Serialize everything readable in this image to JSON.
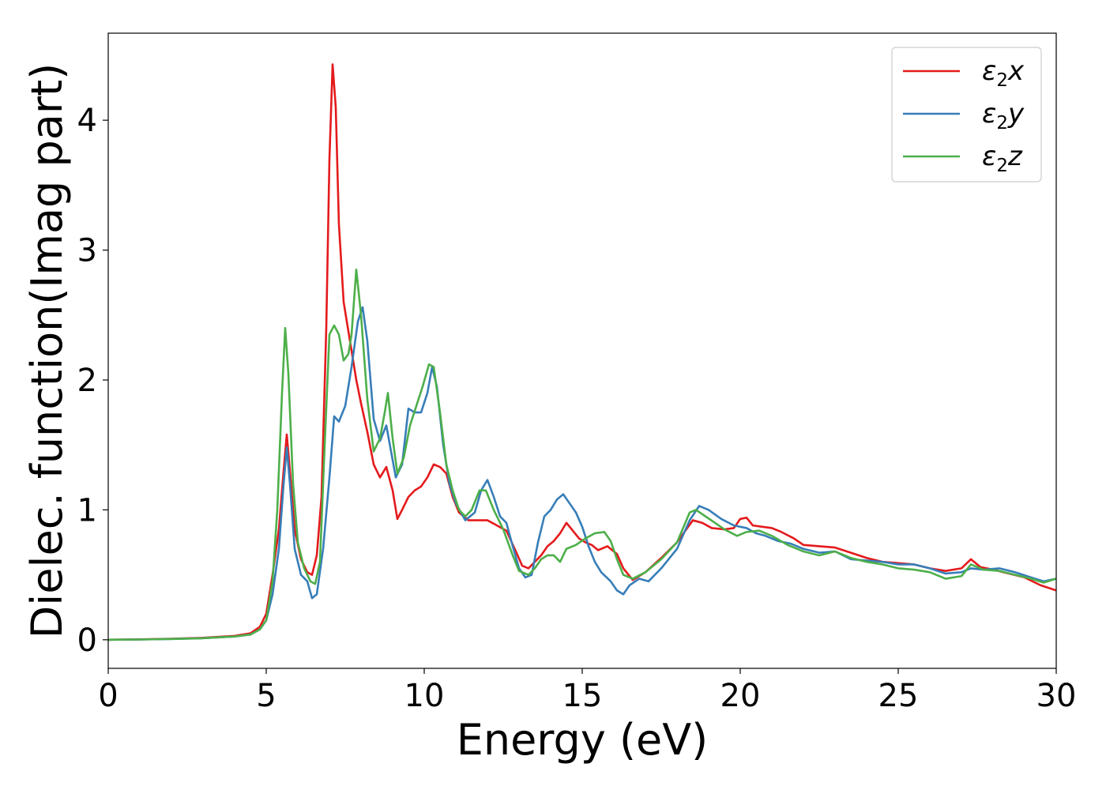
{
  "chart_data": {
    "type": "line",
    "xlabel": "Energy (eV)",
    "ylabel": "Dielec. function(Imag part)",
    "xlim": [
      0,
      30
    ],
    "ylim": [
      -0.22,
      4.67
    ],
    "x_ticks": [
      0,
      5,
      10,
      15,
      20,
      25,
      30
    ],
    "y_ticks": [
      0,
      1,
      2,
      3,
      4
    ],
    "grid": false,
    "legend_position": "top-right",
    "series": [
      {
        "name": "ε₂x",
        "name_base": "ε",
        "name_sub": "2",
        "name_var": "x",
        "color": "#e41a1c",
        "points": [
          [
            0,
            0
          ],
          [
            1,
            0.003
          ],
          [
            2,
            0.008
          ],
          [
            3,
            0.015
          ],
          [
            4,
            0.03
          ],
          [
            4.5,
            0.05
          ],
          [
            4.8,
            0.1
          ],
          [
            5.0,
            0.2
          ],
          [
            5.2,
            0.5
          ],
          [
            5.4,
            0.85
          ],
          [
            5.55,
            1.3
          ],
          [
            5.65,
            1.58
          ],
          [
            5.75,
            1.3
          ],
          [
            5.9,
            0.85
          ],
          [
            6.1,
            0.62
          ],
          [
            6.3,
            0.52
          ],
          [
            6.45,
            0.5
          ],
          [
            6.6,
            0.65
          ],
          [
            6.75,
            1.1
          ],
          [
            6.9,
            2.4
          ],
          [
            7.0,
            3.7
          ],
          [
            7.1,
            4.43
          ],
          [
            7.2,
            4.1
          ],
          [
            7.3,
            3.2
          ],
          [
            7.45,
            2.6
          ],
          [
            7.65,
            2.3
          ],
          [
            7.85,
            2.0
          ],
          [
            8.0,
            1.82
          ],
          [
            8.2,
            1.6
          ],
          [
            8.4,
            1.35
          ],
          [
            8.6,
            1.25
          ],
          [
            8.8,
            1.33
          ],
          [
            9.0,
            1.15
          ],
          [
            9.15,
            0.93
          ],
          [
            9.3,
            1.0
          ],
          [
            9.5,
            1.1
          ],
          [
            9.7,
            1.15
          ],
          [
            9.9,
            1.18
          ],
          [
            10.1,
            1.25
          ],
          [
            10.3,
            1.35
          ],
          [
            10.5,
            1.33
          ],
          [
            10.7,
            1.28
          ],
          [
            10.9,
            1.1
          ],
          [
            11.1,
            0.98
          ],
          [
            11.4,
            0.92
          ],
          [
            11.7,
            0.92
          ],
          [
            12.0,
            0.92
          ],
          [
            12.3,
            0.88
          ],
          [
            12.6,
            0.84
          ],
          [
            12.9,
            0.68
          ],
          [
            13.1,
            0.57
          ],
          [
            13.3,
            0.55
          ],
          [
            13.5,
            0.6
          ],
          [
            13.7,
            0.65
          ],
          [
            13.9,
            0.72
          ],
          [
            14.1,
            0.76
          ],
          [
            14.3,
            0.82
          ],
          [
            14.5,
            0.9
          ],
          [
            14.7,
            0.84
          ],
          [
            14.9,
            0.78
          ],
          [
            15.1,
            0.75
          ],
          [
            15.3,
            0.73
          ],
          [
            15.5,
            0.69
          ],
          [
            15.8,
            0.72
          ],
          [
            16.1,
            0.66
          ],
          [
            16.3,
            0.55
          ],
          [
            16.6,
            0.46
          ],
          [
            17.0,
            0.52
          ],
          [
            17.5,
            0.63
          ],
          [
            18.0,
            0.75
          ],
          [
            18.5,
            0.92
          ],
          [
            18.8,
            0.9
          ],
          [
            19.1,
            0.86
          ],
          [
            19.5,
            0.85
          ],
          [
            19.8,
            0.86
          ],
          [
            20.0,
            0.93
          ],
          [
            20.2,
            0.94
          ],
          [
            20.4,
            0.88
          ],
          [
            20.7,
            0.87
          ],
          [
            21.0,
            0.86
          ],
          [
            21.3,
            0.83
          ],
          [
            21.7,
            0.78
          ],
          [
            22.0,
            0.73
          ],
          [
            22.5,
            0.72
          ],
          [
            23.0,
            0.71
          ],
          [
            23.5,
            0.67
          ],
          [
            24.0,
            0.63
          ],
          [
            24.5,
            0.6
          ],
          [
            25.0,
            0.59
          ],
          [
            25.5,
            0.58
          ],
          [
            26.0,
            0.55
          ],
          [
            26.5,
            0.53
          ],
          [
            27.0,
            0.55
          ],
          [
            27.3,
            0.62
          ],
          [
            27.6,
            0.56
          ],
          [
            28.0,
            0.54
          ],
          [
            28.5,
            0.51
          ],
          [
            29.0,
            0.48
          ],
          [
            29.5,
            0.42
          ],
          [
            30.0,
            0.38
          ]
        ]
      },
      {
        "name": "ε₂y",
        "name_base": "ε",
        "name_sub": "2",
        "name_var": "y",
        "color": "#377eb8",
        "points": [
          [
            0,
            0
          ],
          [
            1,
            0.002
          ],
          [
            2,
            0.006
          ],
          [
            3,
            0.012
          ],
          [
            4,
            0.025
          ],
          [
            4.5,
            0.04
          ],
          [
            4.8,
            0.08
          ],
          [
            5.0,
            0.15
          ],
          [
            5.2,
            0.35
          ],
          [
            5.4,
            0.7
          ],
          [
            5.55,
            1.2
          ],
          [
            5.65,
            1.48
          ],
          [
            5.75,
            1.2
          ],
          [
            5.9,
            0.7
          ],
          [
            6.1,
            0.5
          ],
          [
            6.3,
            0.45
          ],
          [
            6.45,
            0.32
          ],
          [
            6.6,
            0.35
          ],
          [
            6.8,
            0.7
          ],
          [
            7.0,
            1.25
          ],
          [
            7.15,
            1.72
          ],
          [
            7.3,
            1.68
          ],
          [
            7.5,
            1.8
          ],
          [
            7.7,
            2.1
          ],
          [
            7.9,
            2.45
          ],
          [
            8.05,
            2.56
          ],
          [
            8.2,
            2.3
          ],
          [
            8.4,
            1.7
          ],
          [
            8.6,
            1.53
          ],
          [
            8.8,
            1.65
          ],
          [
            8.95,
            1.45
          ],
          [
            9.1,
            1.25
          ],
          [
            9.3,
            1.35
          ],
          [
            9.5,
            1.78
          ],
          [
            9.7,
            1.75
          ],
          [
            9.9,
            1.75
          ],
          [
            10.1,
            1.9
          ],
          [
            10.25,
            2.1
          ],
          [
            10.4,
            1.95
          ],
          [
            10.6,
            1.5
          ],
          [
            10.8,
            1.2
          ],
          [
            11.0,
            1.05
          ],
          [
            11.3,
            0.92
          ],
          [
            11.6,
            0.98
          ],
          [
            11.8,
            1.15
          ],
          [
            12.0,
            1.23
          ],
          [
            12.2,
            1.1
          ],
          [
            12.4,
            0.95
          ],
          [
            12.6,
            0.9
          ],
          [
            12.8,
            0.72
          ],
          [
            13.0,
            0.55
          ],
          [
            13.2,
            0.48
          ],
          [
            13.4,
            0.5
          ],
          [
            13.6,
            0.75
          ],
          [
            13.8,
            0.95
          ],
          [
            14.0,
            1.0
          ],
          [
            14.2,
            1.08
          ],
          [
            14.4,
            1.12
          ],
          [
            14.6,
            1.05
          ],
          [
            14.8,
            0.98
          ],
          [
            15.0,
            0.87
          ],
          [
            15.2,
            0.72
          ],
          [
            15.4,
            0.6
          ],
          [
            15.6,
            0.52
          ],
          [
            15.9,
            0.45
          ],
          [
            16.1,
            0.38
          ],
          [
            16.3,
            0.35
          ],
          [
            16.5,
            0.42
          ],
          [
            16.8,
            0.47
          ],
          [
            17.1,
            0.45
          ],
          [
            17.5,
            0.55
          ],
          [
            18.0,
            0.7
          ],
          [
            18.4,
            0.92
          ],
          [
            18.7,
            1.03
          ],
          [
            19.0,
            1.0
          ],
          [
            19.4,
            0.93
          ],
          [
            19.8,
            0.88
          ],
          [
            20.2,
            0.86
          ],
          [
            20.5,
            0.82
          ],
          [
            20.8,
            0.8
          ],
          [
            21.2,
            0.76
          ],
          [
            21.6,
            0.74
          ],
          [
            22.0,
            0.7
          ],
          [
            22.5,
            0.67
          ],
          [
            23.0,
            0.68
          ],
          [
            23.5,
            0.62
          ],
          [
            24.0,
            0.61
          ],
          [
            24.5,
            0.6
          ],
          [
            25.0,
            0.58
          ],
          [
            25.5,
            0.58
          ],
          [
            26.0,
            0.55
          ],
          [
            26.5,
            0.51
          ],
          [
            27.0,
            0.52
          ],
          [
            27.3,
            0.55
          ],
          [
            27.7,
            0.54
          ],
          [
            28.2,
            0.55
          ],
          [
            28.7,
            0.52
          ],
          [
            29.2,
            0.48
          ],
          [
            29.6,
            0.45
          ],
          [
            30.0,
            0.47
          ]
        ]
      },
      {
        "name": "ε₂z",
        "name_base": "ε",
        "name_sub": "2",
        "name_var": "z",
        "color": "#4daf4a",
        "points": [
          [
            0,
            0
          ],
          [
            1,
            0.002
          ],
          [
            2,
            0.006
          ],
          [
            3,
            0.012
          ],
          [
            4,
            0.025
          ],
          [
            4.5,
            0.04
          ],
          [
            4.8,
            0.08
          ],
          [
            5.0,
            0.15
          ],
          [
            5.2,
            0.45
          ],
          [
            5.35,
            1.0
          ],
          [
            5.5,
            1.9
          ],
          [
            5.6,
            2.4
          ],
          [
            5.7,
            2.05
          ],
          [
            5.85,
            1.2
          ],
          [
            6.0,
            0.75
          ],
          [
            6.2,
            0.55
          ],
          [
            6.4,
            0.45
          ],
          [
            6.55,
            0.43
          ],
          [
            6.7,
            0.6
          ],
          [
            6.85,
            1.5
          ],
          [
            7.0,
            2.35
          ],
          [
            7.15,
            2.42
          ],
          [
            7.3,
            2.35
          ],
          [
            7.45,
            2.15
          ],
          [
            7.6,
            2.2
          ],
          [
            7.7,
            2.35
          ],
          [
            7.85,
            2.85
          ],
          [
            8.0,
            2.5
          ],
          [
            8.2,
            1.85
          ],
          [
            8.4,
            1.45
          ],
          [
            8.6,
            1.55
          ],
          [
            8.75,
            1.75
          ],
          [
            8.85,
            1.9
          ],
          [
            9.0,
            1.55
          ],
          [
            9.15,
            1.28
          ],
          [
            9.35,
            1.4
          ],
          [
            9.55,
            1.65
          ],
          [
            9.75,
            1.8
          ],
          [
            9.95,
            1.95
          ],
          [
            10.15,
            2.12
          ],
          [
            10.3,
            2.1
          ],
          [
            10.5,
            1.75
          ],
          [
            10.7,
            1.35
          ],
          [
            10.9,
            1.15
          ],
          [
            11.1,
            1.0
          ],
          [
            11.3,
            0.95
          ],
          [
            11.5,
            1.0
          ],
          [
            11.75,
            1.15
          ],
          [
            11.95,
            1.15
          ],
          [
            12.2,
            1.0
          ],
          [
            12.5,
            0.85
          ],
          [
            12.8,
            0.65
          ],
          [
            13.0,
            0.53
          ],
          [
            13.3,
            0.5
          ],
          [
            13.5,
            0.55
          ],
          [
            13.7,
            0.62
          ],
          [
            13.9,
            0.65
          ],
          [
            14.1,
            0.65
          ],
          [
            14.3,
            0.6
          ],
          [
            14.5,
            0.7
          ],
          [
            14.8,
            0.73
          ],
          [
            15.1,
            0.78
          ],
          [
            15.4,
            0.82
          ],
          [
            15.7,
            0.83
          ],
          [
            15.9,
            0.76
          ],
          [
            16.1,
            0.62
          ],
          [
            16.3,
            0.5
          ],
          [
            16.6,
            0.47
          ],
          [
            17.0,
            0.52
          ],
          [
            17.5,
            0.62
          ],
          [
            18.0,
            0.75
          ],
          [
            18.4,
            0.98
          ],
          [
            18.6,
            1.0
          ],
          [
            18.9,
            0.95
          ],
          [
            19.2,
            0.9
          ],
          [
            19.5,
            0.85
          ],
          [
            19.9,
            0.8
          ],
          [
            20.2,
            0.83
          ],
          [
            20.6,
            0.84
          ],
          [
            21.0,
            0.8
          ],
          [
            21.5,
            0.73
          ],
          [
            22.0,
            0.68
          ],
          [
            22.5,
            0.65
          ],
          [
            23.0,
            0.68
          ],
          [
            23.5,
            0.63
          ],
          [
            24.0,
            0.6
          ],
          [
            24.5,
            0.58
          ],
          [
            25.0,
            0.55
          ],
          [
            25.5,
            0.54
          ],
          [
            26.0,
            0.52
          ],
          [
            26.5,
            0.47
          ],
          [
            27.0,
            0.49
          ],
          [
            27.3,
            0.58
          ],
          [
            27.7,
            0.54
          ],
          [
            28.2,
            0.53
          ],
          [
            28.7,
            0.5
          ],
          [
            29.2,
            0.47
          ],
          [
            29.6,
            0.44
          ],
          [
            30.0,
            0.47
          ]
        ]
      }
    ]
  }
}
